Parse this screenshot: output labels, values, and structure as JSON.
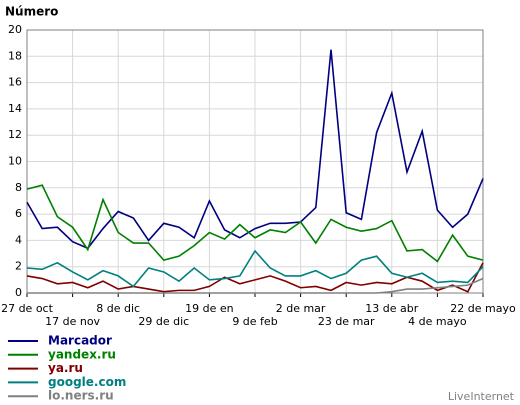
{
  "chart_data": {
    "type": "line",
    "title": "Número",
    "categories": [
      "27 de oct",
      null,
      null,
      "17 de nov",
      null,
      null,
      "8 de dic",
      null,
      null,
      "29 de dic",
      null,
      null,
      "19 de en",
      null,
      null,
      "9 de feb",
      null,
      null,
      "2 de mar",
      null,
      null,
      "23 de mar",
      null,
      null,
      "13 de abr",
      null,
      null,
      "4 de mayo",
      null,
      null,
      "22 de mayo"
    ],
    "series": [
      {
        "name": "Marcador",
        "color": "#000080",
        "values": [
          6.9,
          4.9,
          5.0,
          3.9,
          3.4,
          4.9,
          6.2,
          5.7,
          4.0,
          5.3,
          5.0,
          4.2,
          7.0,
          4.8,
          4.2,
          4.9,
          5.3,
          5.3,
          5.4,
          6.5,
          18.5,
          6.1,
          5.6,
          12.2,
          15.2,
          9.2,
          12.3,
          6.3,
          5.0,
          6.0,
          8.7
        ]
      },
      {
        "name": "yandex.ru",
        "color": "#008000",
        "values": [
          7.9,
          8.2,
          5.8,
          5.0,
          3.3,
          7.1,
          4.6,
          3.8,
          3.8,
          2.5,
          2.8,
          3.6,
          4.6,
          4.1,
          5.2,
          4.2,
          4.8,
          4.6,
          5.4,
          3.8,
          5.6,
          5.0,
          4.7,
          4.9,
          5.5,
          3.2,
          3.3,
          2.4,
          4.4,
          2.8,
          2.5
        ]
      },
      {
        "name": "ya.ru",
        "color": "#800000",
        "values": [
          1.3,
          1.1,
          0.7,
          0.8,
          0.4,
          0.9,
          0.3,
          0.5,
          0.3,
          0.1,
          0.2,
          0.2,
          0.5,
          1.2,
          0.7,
          1.0,
          1.3,
          0.9,
          0.4,
          0.5,
          0.2,
          0.8,
          0.6,
          0.8,
          0.7,
          1.2,
          0.9,
          0.2,
          0.6,
          0.1,
          2.3
        ]
      },
      {
        "name": "google.com",
        "color": "#008080",
        "values": [
          1.9,
          1.8,
          2.3,
          1.6,
          1.0,
          1.7,
          1.3,
          0.5,
          1.9,
          1.6,
          0.9,
          1.9,
          1.0,
          1.1,
          1.3,
          3.2,
          1.9,
          1.3,
          1.3,
          1.7,
          1.1,
          1.5,
          2.5,
          2.8,
          1.5,
          1.2,
          1.5,
          0.8,
          0.9,
          0.8,
          2.0
        ]
      },
      {
        "name": "lo.ners.ru",
        "color": "#808080",
        "values": [
          0,
          0,
          0,
          0,
          0,
          0,
          0,
          0,
          0,
          0,
          0,
          0,
          0,
          0,
          0,
          0,
          0,
          0,
          0,
          0,
          0,
          0,
          0,
          0,
          0.1,
          0.3,
          0.3,
          0.4,
          0.5,
          0.6,
          1.1
        ]
      }
    ],
    "ylim": [
      0,
      20
    ],
    "yticks": [
      0,
      2,
      4,
      6,
      8,
      10,
      12,
      14,
      16,
      18,
      20
    ],
    "grid": true,
    "footer": "LiveInternet"
  }
}
